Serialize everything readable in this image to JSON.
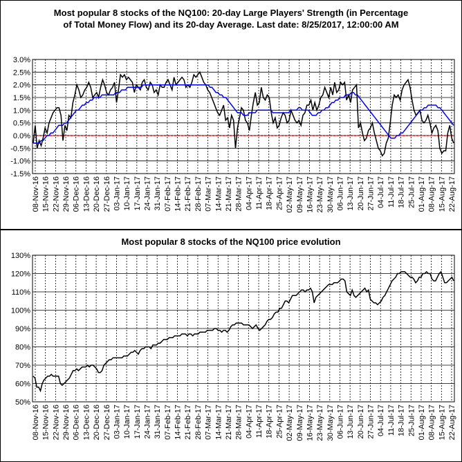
{
  "chart_data": [
    {
      "type": "line",
      "title_line1": "Most popular 8 stocks of the NQ100: 20-day Large Players' Strength (in Percentage",
      "title_line2": "of Total Money Flow) and its 20-day Average. Last date: 8/25/2017, 12:00:00 AM",
      "y_ticks": [
        "3.0%",
        "2.5%",
        "2.0%",
        "1.5%",
        "1.0%",
        "0.5%",
        "0.0%",
        "-0.5%",
        "-1.0%",
        "-1.5%"
      ],
      "ylim": [
        -1.5,
        3.0
      ],
      "x_ticks": [
        "08-Nov-16",
        "15-Nov-16",
        "22-Nov-16",
        "29-Nov-16",
        "06-Dec-16",
        "13-Dec-16",
        "20-Dec-16",
        "27-Dec-16",
        "03-Jan-17",
        "10-Jan-17",
        "17-Jan-17",
        "24-Jan-17",
        "31-Jan-17",
        "07-Feb-17",
        "14-Feb-17",
        "21-Feb-17",
        "28-Feb-17",
        "07-Mar-17",
        "14-Mar-17",
        "21-Mar-17",
        "28-Mar-17",
        "04-Apr-17",
        "11-Apr-17",
        "18-Apr-17",
        "25-Apr-17",
        "02-May-17",
        "09-May-17",
        "16-May-17",
        "23-May-17",
        "30-May-17",
        "06-Jun-17",
        "13-Jun-17",
        "20-Jun-17",
        "27-Jun-17",
        "04-Jul-17",
        "11-Jul-17",
        "18-Jul-17",
        "25-Jul-17",
        "01-Aug-17",
        "08-Aug-17",
        "15-Aug-17",
        "22-Aug-17"
      ],
      "grid": true,
      "zero_line_color": "#ff0000",
      "series": [
        {
          "color": "#000000",
          "values": [
            -0.3,
            0.4,
            -0.5,
            -0.2,
            -0.4,
            -0.1,
            0.3,
            0.1,
            0.5,
            0.7,
            0.9,
            1.0,
            1.1,
            1.1,
            0.8,
            -0.2,
            0.4,
            0.2,
            0.8,
            0.7,
            1.3,
            1.6,
            2.0,
            1.8,
            1.5,
            1.6,
            1.8,
            1.9,
            2.1,
            1.9,
            1.5,
            1.6,
            1.7,
            1.5,
            1.9,
            2.2,
            2.0,
            1.7,
            1.6,
            1.8,
            1.9,
            2.1,
            1.3,
            1.8,
            2.4,
            2.3,
            2.4,
            2.2,
            2.3,
            2.2,
            2.1,
            1.7,
            2.0,
            1.9,
            1.8,
            2.1,
            2.2,
            1.9,
            1.8,
            2.1,
            2.0,
            1.7,
            1.8,
            1.6,
            2.0,
            1.9,
            1.9,
            2.1,
            2.2,
            2.0,
            1.8,
            2.3,
            2.0,
            2.1,
            2.2,
            2.3,
            2.2,
            1.9,
            2.0,
            1.9,
            2.1,
            2.4,
            2.3,
            2.4,
            2.5,
            2.3,
            2.1,
            2.0,
            1.8,
            1.7,
            1.5,
            1.3,
            1.1,
            0.9,
            0.8,
            1.0,
            1.2,
            0.6,
            0.7,
            0.3,
            0.8,
            0.6,
            -0.5,
            0.3,
            0.7,
            1.1,
            1.0,
            0.6,
            0.5,
            0.2,
            0.8,
            1.3,
            1.7,
            1.2,
            1.3,
            1.9,
            1.5,
            1.4,
            1.6,
            1.5,
            0.9,
            0.5,
            0.7,
            0.3,
            0.4,
            0.7,
            0.9,
            0.8,
            0.5,
            0.6,
            1.0,
            0.8,
            0.6,
            0.5,
            0.6,
            0.4,
            0.8,
            0.9,
            1.2,
            1.2,
            1.4,
            1.0,
            1.3,
            1.0,
            1.2,
            1.5,
            1.6,
            1.9,
            1.7,
            1.5,
            1.9,
            1.6,
            2.1,
            1.7,
            1.8,
            2.1,
            2.0,
            2.1,
            1.4,
            1.6,
            1.3,
            1.8,
            1.9,
            2.0,
            0.3,
            0.5,
            0.1,
            -0.2,
            -0.1,
            0.2,
            0.3,
            0.5,
            0.1,
            -0.2,
            -0.5,
            -0.6,
            -0.8,
            -0.7,
            -0.3,
            -0.1,
            0.5,
            1.2,
            1.6,
            1.5,
            1.6,
            1.4,
            1.8,
            2.0,
            2.1,
            2.2,
            1.9,
            1.4,
            1.0,
            0.8,
            0.9,
            1.0,
            0.6,
            0.5,
            0.6,
            0.8,
            0.5,
            0.1,
            0.3,
            0.4,
            0.2,
            -0.5,
            -0.7,
            -0.6,
            -0.6,
            0.1,
            0.4,
            -0.1,
            -0.3
          ]
        },
        {
          "color": "#0000ff",
          "values": [
            -0.3,
            -0.3,
            -0.3,
            -0.3,
            -0.2,
            -0.2,
            -0.1,
            0.0,
            0.0,
            0.1,
            0.1,
            0.2,
            0.3,
            0.4,
            0.4,
            0.4,
            0.5,
            0.5,
            0.6,
            0.7,
            0.8,
            0.9,
            1.0,
            1.0,
            1.1,
            1.2,
            1.2,
            1.3,
            1.3,
            1.4,
            1.4,
            1.5,
            1.5,
            1.5,
            1.5,
            1.6,
            1.6,
            1.6,
            1.6,
            1.6,
            1.6,
            1.6,
            1.7,
            1.7,
            1.7,
            1.8,
            1.8,
            1.8,
            1.9,
            1.9,
            1.9,
            1.9,
            1.9,
            1.9,
            1.9,
            1.9,
            2.0,
            2.0,
            2.0,
            2.0,
            2.0,
            2.0,
            2.0,
            2.0,
            2.0,
            2.0,
            2.0,
            2.0,
            2.0,
            2.0,
            2.0,
            2.0,
            2.0,
            2.0,
            2.0,
            2.0,
            2.0,
            2.0,
            2.0,
            2.0,
            2.0,
            2.0,
            2.0,
            2.0,
            2.0,
            2.0,
            2.0,
            2.0,
            2.0,
            2.0,
            1.9,
            1.9,
            1.8,
            1.7,
            1.7,
            1.6,
            1.6,
            1.5,
            1.5,
            1.4,
            1.3,
            1.2,
            1.1,
            1.0,
            0.9,
            0.9,
            0.9,
            0.8,
            0.8,
            0.8,
            0.9,
            0.9,
            0.9,
            0.9,
            1.0,
            1.0,
            1.0,
            1.0,
            1.0,
            1.0,
            1.0,
            1.0,
            0.9,
            0.9,
            0.9,
            0.9,
            0.9,
            0.9,
            0.9,
            0.9,
            0.9,
            1.0,
            1.0,
            1.0,
            1.0,
            1.1,
            1.1,
            1.0,
            1.0,
            1.0,
            1.0,
            0.9,
            0.8,
            0.8,
            0.8,
            0.9,
            0.9,
            1.0,
            1.0,
            1.1,
            1.1,
            1.2,
            1.3,
            1.3,
            1.4,
            1.4,
            1.5,
            1.5,
            1.5,
            1.6,
            1.6,
            1.6,
            1.7,
            1.7,
            1.6,
            1.6,
            1.5,
            1.4,
            1.3,
            1.2,
            1.1,
            1.0,
            0.9,
            0.8,
            0.7,
            0.6,
            0.5,
            0.4,
            0.3,
            0.2,
            0.1,
            0.0,
            -0.1,
            -0.1,
            -0.1,
            0.0,
            0.0,
            0.1,
            0.1,
            0.2,
            0.3,
            0.4,
            0.5,
            0.6,
            0.7,
            0.8,
            0.9,
            1.0,
            1.0,
            1.1,
            1.1,
            1.2,
            1.2,
            1.2,
            1.2,
            1.2,
            1.1,
            1.1,
            1.0,
            0.9,
            0.8,
            0.7,
            0.6,
            0.5,
            0.4
          ]
        }
      ]
    },
    {
      "type": "line",
      "title": "Most popular 8 stocks of the NQ100 price evolution",
      "y_ticks": [
        "130%",
        "120%",
        "110%",
        "100%",
        "90%",
        "80%",
        "70%",
        "60%",
        "50%"
      ],
      "ylim": [
        50,
        130
      ],
      "x_ticks": [
        "08-Nov-16",
        "15-Nov-16",
        "22-Nov-16",
        "29-Nov-16",
        "06-Dec-16",
        "13-Dec-16",
        "20-Dec-16",
        "27-Dec-16",
        "03-Jan-17",
        "10-Jan-17",
        "17-Jan-17",
        "24-Jan-17",
        "31-Jan-17",
        "07-Feb-17",
        "14-Feb-17",
        "21-Feb-17",
        "28-Feb-17",
        "07-Mar-17",
        "14-Mar-17",
        "21-Mar-17",
        "28-Mar-17",
        "04-Apr-17",
        "11-Apr-17",
        "18-Apr-17",
        "25-Apr-17",
        "02-May-17",
        "09-May-17",
        "16-May-17",
        "23-May-17",
        "30-May-17",
        "06-Jun-17",
        "13-Jun-17",
        "20-Jun-17",
        "27-Jun-17",
        "04-Jul-17",
        "11-Jul-17",
        "18-Jul-17",
        "25-Jul-17",
        "01-Aug-17",
        "08-Aug-17",
        "15-Aug-17",
        "22-Aug-17"
      ],
      "grid": true,
      "series": [
        {
          "color": "#000000",
          "values": [
            64,
            63,
            58,
            58,
            56,
            60,
            62,
            63,
            64,
            64,
            65,
            64,
            64,
            64,
            64,
            60,
            59,
            60,
            61,
            62,
            63,
            65,
            67,
            67,
            68,
            67,
            68,
            69,
            69,
            69,
            70,
            69,
            70,
            70,
            69,
            68,
            66,
            66,
            67,
            70,
            71,
            72,
            73,
            73,
            74,
            74,
            74,
            74,
            74,
            74,
            75,
            75,
            75,
            76,
            77,
            77,
            78,
            77,
            76,
            78,
            79,
            79,
            80,
            80,
            80,
            79,
            81,
            81,
            81,
            82,
            82,
            83,
            84,
            84,
            84,
            85,
            85,
            85,
            86,
            86,
            86,
            86,
            87,
            87,
            87,
            86,
            87,
            87,
            86,
            87,
            87,
            87,
            88,
            88,
            88,
            88,
            89,
            89,
            89,
            89,
            90,
            90,
            89,
            89,
            88,
            89,
            89,
            88,
            89,
            91,
            92,
            92,
            93,
            93,
            93,
            93,
            92,
            92,
            92,
            92,
            91,
            90,
            91,
            92,
            90,
            89,
            90,
            91,
            92,
            94,
            95,
            95,
            96,
            98,
            99,
            99,
            101,
            101,
            103,
            105,
            105,
            104,
            106,
            108,
            108,
            108,
            109,
            110,
            111,
            111,
            110,
            111,
            111,
            112,
            110,
            104,
            107,
            108,
            109,
            110,
            111,
            112,
            113,
            114,
            114,
            114,
            115,
            115,
            115,
            116,
            117,
            117,
            116,
            110,
            109,
            108,
            111,
            108,
            107,
            108,
            109,
            110,
            111,
            112,
            110,
            111,
            106,
            105,
            104,
            104,
            103,
            104,
            105,
            107,
            108,
            110,
            112,
            114,
            116,
            117,
            118,
            120,
            120,
            121,
            121,
            121,
            120,
            119,
            118,
            118,
            117,
            115,
            116,
            118,
            118,
            120,
            120,
            121,
            120,
            120,
            117,
            116,
            116,
            118,
            120,
            121,
            118,
            115,
            115,
            116,
            117,
            118,
            116
          ]
        }
      ]
    }
  ]
}
